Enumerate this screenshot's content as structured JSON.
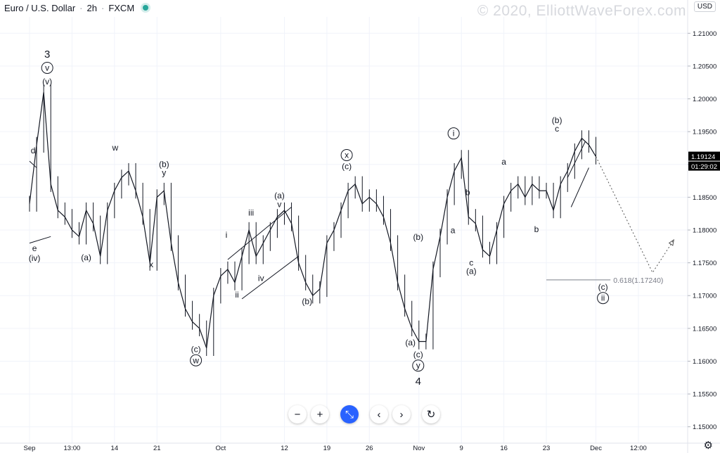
{
  "header": {
    "symbol": "Euro / U.S. Dollar",
    "interval": "2h",
    "exchange": "FXCM",
    "separator": "·"
  },
  "watermark": "© 2020, ElliottWaveForex.com",
  "currency": "USD",
  "toolbar": [
    {
      "name": "zoom-out-button",
      "glyph": "−"
    },
    {
      "name": "zoom-in-button",
      "glyph": "+"
    },
    {
      "name": "reset-scale-button",
      "glyph": "⤡"
    },
    {
      "name": "scroll-left-button",
      "glyph": "‹"
    },
    {
      "name": "scroll-right-button",
      "glyph": "›"
    },
    {
      "name": "reset-chart-button",
      "glyph": "↻"
    }
  ],
  "colors": {
    "price": "#131722",
    "grid": "#f0f3fa",
    "axis_text": "#131722",
    "badge_bg": "#000000",
    "fib_line": "#9598a1",
    "fib_text": "#787b86"
  },
  "chart_data": {
    "type": "line",
    "title": "Euro / U.S. Dollar · 2h · FXCM",
    "xlabel": "",
    "ylabel": "",
    "ylim": [
      1.1475,
      1.2125
    ],
    "y_ticks": [
      1.15,
      1.155,
      1.16,
      1.165,
      1.17,
      1.175,
      1.18,
      1.185,
      1.19,
      1.195,
      1.2,
      1.205,
      1.21
    ],
    "y_tick_labels": [
      "1.15000",
      "1.15500",
      "1.16000",
      "1.16500",
      "1.17000",
      "1.17500",
      "1.18000",
      "1.18500",
      "1.19000",
      "1.19500",
      "1.20000",
      "1.20500",
      "1.21000"
    ],
    "x_tick_labels": [
      "Sep",
      "13:00",
      "14",
      "21",
      "Oct",
      "12",
      "19",
      "26",
      "Nov",
      "9",
      "16",
      "23",
      "Dec",
      "12:00"
    ],
    "x_tick_index": [
      0,
      6,
      12,
      18,
      27,
      36,
      42,
      48,
      55,
      61,
      67,
      73,
      80,
      86
    ],
    "x_count": 88,
    "grid": true,
    "series": [
      {
        "close": [
          1.184,
          1.193,
          1.201,
          1.187,
          1.183,
          1.182,
          1.18,
          1.179,
          1.183,
          1.181,
          1.176,
          1.183,
          1.186,
          1.188,
          1.189,
          1.186,
          1.182,
          1.175,
          1.185,
          1.186,
          1.178,
          1.172,
          1.168,
          1.166,
          1.165,
          1.162,
          1.17,
          1.173,
          1.174,
          1.172,
          1.176,
          1.18,
          1.176,
          1.178,
          1.18,
          1.182,
          1.183,
          1.181,
          1.175,
          1.172,
          1.17,
          1.171,
          1.178,
          1.18,
          1.183,
          1.186,
          1.187,
          1.184,
          1.185,
          1.184,
          1.182,
          1.178,
          1.172,
          1.168,
          1.165,
          1.163,
          1.163,
          1.174,
          1.179,
          1.185,
          1.189,
          1.191,
          1.182,
          1.181,
          1.177,
          1.176,
          1.18,
          1.184,
          1.186,
          1.187,
          1.185,
          1.187,
          1.186,
          1.186,
          1.183,
          1.187,
          1.189,
          1.192,
          1.194,
          1.193,
          1.1912
        ]
      }
    ],
    "last_price": "1.19124",
    "countdown": "01:29:02",
    "projection": [
      [
        80,
        1.1912
      ],
      [
        88,
        1.1735
      ],
      [
        91,
        1.1785
      ]
    ],
    "fib": {
      "label": "0.618(1.17240)",
      "value": 1.1724,
      "x_start": 73,
      "x_end": 90
    },
    "channels": [
      {
        "lines": [
          [
            [
              28,
              1.1755
            ],
            [
              37,
              1.1835
            ]
          ],
          [
            [
              30,
              1.1695
            ],
            [
              38,
              1.176
            ]
          ]
        ]
      },
      {
        "lines": [
          [
            [
              76,
              1.188
            ],
            [
              78.5,
              1.1935
            ]
          ],
          [
            [
              76.5,
              1.1835
            ],
            [
              79,
              1.1895
            ]
          ]
        ]
      }
    ],
    "trendlines": [
      [
        [
          0,
          1.178
        ],
        [
          3,
          1.179
        ]
      ],
      [
        [
          0,
          1.1905
        ],
        [
          1,
          1.1895
        ]
      ]
    ],
    "wave_labels": [
      {
        "x": 2.5,
        "y": 1.2063,
        "lines": [
          "3"
        ],
        "size": "big"
      },
      {
        "x": 2.5,
        "y": 1.2043,
        "lines": [
          "v"
        ],
        "circle": true
      },
      {
        "x": 2.5,
        "y": 1.2022,
        "lines": [
          "(v)"
        ]
      },
      {
        "x": 0.5,
        "y": 1.1917,
        "lines": [
          "d"
        ]
      },
      {
        "x": 0.7,
        "y": 1.1768,
        "lines": [
          "e"
        ]
      },
      {
        "x": 0.7,
        "y": 1.1753,
        "lines": [
          "(iv)"
        ]
      },
      {
        "x": 8.0,
        "y": 1.1754,
        "lines": [
          "(a)"
        ]
      },
      {
        "x": 12.1,
        "y": 1.1921,
        "lines": [
          "w"
        ]
      },
      {
        "x": 17.2,
        "y": 1.1743,
        "lines": [
          "x"
        ]
      },
      {
        "x": 19.0,
        "y": 1.1896,
        "lines": [
          "(b)"
        ]
      },
      {
        "x": 19.0,
        "y": 1.1883,
        "lines": [
          "y"
        ]
      },
      {
        "x": 23.5,
        "y": 1.1614,
        "lines": [
          "(c)"
        ]
      },
      {
        "x": 23.5,
        "y": 1.1597,
        "lines": [
          "w"
        ],
        "circle": true
      },
      {
        "x": 27.8,
        "y": 1.1788,
        "lines": [
          "i"
        ]
      },
      {
        "x": 29.3,
        "y": 1.1697,
        "lines": [
          "ii"
        ]
      },
      {
        "x": 31.3,
        "y": 1.1822,
        "lines": [
          "iii"
        ]
      },
      {
        "x": 32.7,
        "y": 1.1722,
        "lines": [
          "iv"
        ]
      },
      {
        "x": 35.3,
        "y": 1.1848,
        "lines": [
          "(a)"
        ]
      },
      {
        "x": 35.3,
        "y": 1.1835,
        "lines": [
          "v"
        ]
      },
      {
        "x": 39.2,
        "y": 1.1687,
        "lines": [
          "(b)"
        ]
      },
      {
        "x": 44.8,
        "y": 1.191,
        "lines": [
          "x"
        ],
        "circle": true
      },
      {
        "x": 44.8,
        "y": 1.1893,
        "lines": [
          "(c)"
        ]
      },
      {
        "x": 53.8,
        "y": 1.1624,
        "lines": [
          "(a)"
        ]
      },
      {
        "x": 54.9,
        "y": 1.1785,
        "lines": [
          "(b)"
        ]
      },
      {
        "x": 54.9,
        "y": 1.1606,
        "lines": [
          "(c)"
        ]
      },
      {
        "x": 54.9,
        "y": 1.1589,
        "lines": [
          "y"
        ],
        "circle": true
      },
      {
        "x": 54.9,
        "y": 1.1564,
        "lines": [
          "4"
        ],
        "size": "big"
      },
      {
        "x": 59.9,
        "y": 1.1943,
        "lines": [
          "i"
        ],
        "circle": true
      },
      {
        "x": 59.8,
        "y": 1.1795,
        "lines": [
          "a"
        ]
      },
      {
        "x": 61.9,
        "y": 1.1853,
        "lines": [
          "b"
        ]
      },
      {
        "x": 62.4,
        "y": 1.1746,
        "lines": [
          "c"
        ]
      },
      {
        "x": 62.4,
        "y": 1.1733,
        "lines": [
          "(a)"
        ]
      },
      {
        "x": 67.0,
        "y": 1.19,
        "lines": [
          "a"
        ]
      },
      {
        "x": 71.6,
        "y": 1.1797,
        "lines": [
          "b"
        ]
      },
      {
        "x": 74.5,
        "y": 1.1963,
        "lines": [
          "(b)"
        ]
      },
      {
        "x": 74.5,
        "y": 1.195,
        "lines": [
          "c"
        ]
      },
      {
        "x": 81.0,
        "y": 1.1709,
        "lines": [
          "(c)"
        ]
      },
      {
        "x": 81.0,
        "y": 1.1692,
        "lines": [
          "ii"
        ],
        "circle": true
      }
    ]
  }
}
